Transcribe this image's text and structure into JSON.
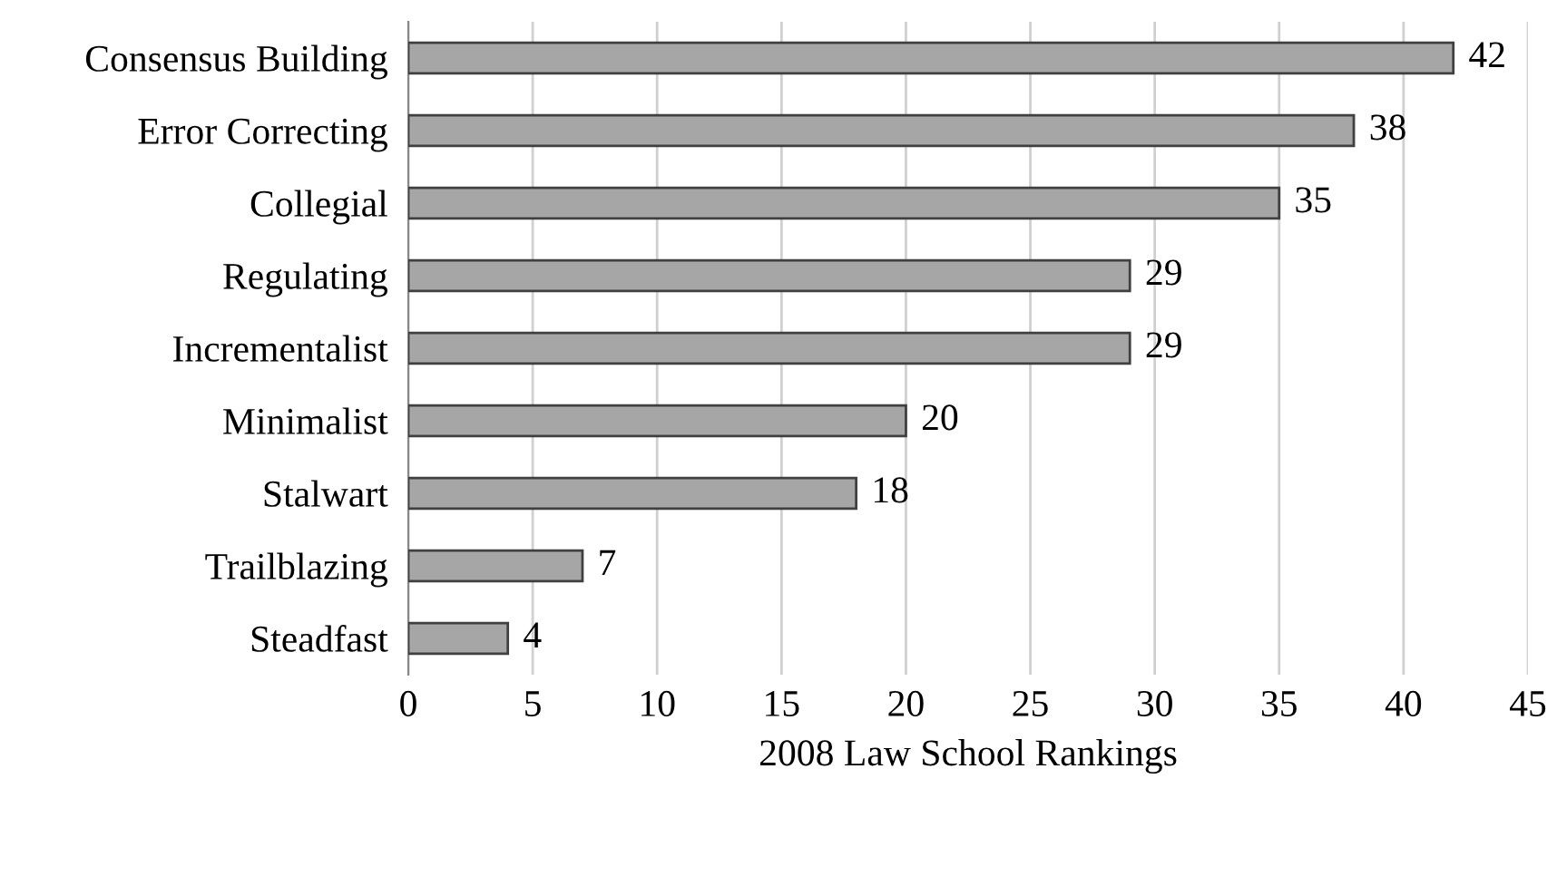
{
  "chart_data": {
    "type": "bar",
    "orientation": "horizontal",
    "xlabel": "2008 Law School Rankings",
    "categories": [
      "Consensus Building",
      "Error Correcting",
      "Collegial",
      "Regulating",
      "Incrementalist",
      "Minimalist",
      "Stalwart",
      "Trailblazing",
      "Steadfast"
    ],
    "values": [
      42,
      38,
      35,
      29,
      29,
      20,
      18,
      7,
      4
    ],
    "color": "#a6a6a6",
    "xlim": [
      0,
      45
    ],
    "xticks": [
      0,
      5,
      10,
      15,
      20,
      25,
      30,
      35,
      40,
      45
    ],
    "grid": "x",
    "data_labels": true
  }
}
